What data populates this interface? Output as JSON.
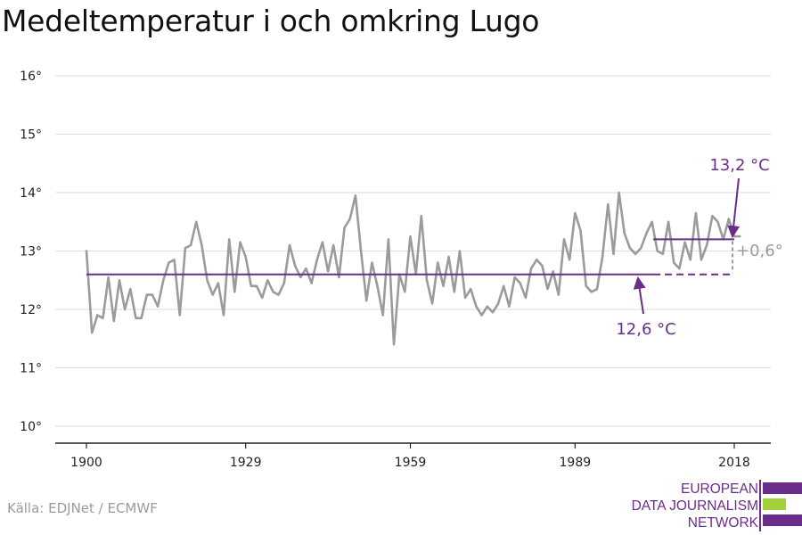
{
  "title": "Medeltemperatur i och omkring Lugo",
  "source": "Källa: EDJNet / ECMWF",
  "logo": {
    "lines": [
      "EUROPEAN",
      "DATA JOURNALISM",
      "NETWORK"
    ],
    "colors": {
      "purple": "#6b2d8a",
      "green": "#a3d13a"
    }
  },
  "chart_data": {
    "type": "line",
    "x_tick_labels": [
      "1900",
      "1929",
      "1959",
      "1989",
      "2018"
    ],
    "x_ticks": [
      1900,
      1929,
      1959,
      1989,
      2018
    ],
    "y_tick_labels": [
      "10°",
      "11°",
      "12°",
      "13°",
      "14°",
      "15°",
      "16°"
    ],
    "y_ticks": [
      10,
      11,
      12,
      13,
      14,
      15,
      16
    ],
    "xlim": [
      1895,
      2022
    ],
    "ylim": [
      9.7,
      16.2
    ],
    "grid": true,
    "series": [
      {
        "color": "#9b9b9b",
        "x": [
          1900,
          1901,
          1902,
          1903,
          1904,
          1905,
          1906,
          1907,
          1908,
          1909,
          1910,
          1911,
          1912,
          1913,
          1914,
          1915,
          1916,
          1917,
          1918,
          1919,
          1920,
          1921,
          1922,
          1923,
          1924,
          1925,
          1926,
          1927,
          1928,
          1929,
          1930,
          1931,
          1932,
          1933,
          1934,
          1935,
          1936,
          1937,
          1938,
          1939,
          1940,
          1941,
          1942,
          1943,
          1944,
          1945,
          1946,
          1947,
          1948,
          1949,
          1950,
          1951,
          1952,
          1953,
          1954,
          1955,
          1956,
          1957,
          1958,
          1959,
          1960,
          1961,
          1962,
          1963,
          1964,
          1965,
          1966,
          1967,
          1968,
          1969,
          1970,
          1971,
          1972,
          1973,
          1974,
          1975,
          1976,
          1977,
          1978,
          1979,
          1980,
          1981,
          1982,
          1983,
          1984,
          1985,
          1986,
          1987,
          1988,
          1989,
          1990,
          1991,
          1992,
          1993,
          1994,
          1995,
          1996,
          1997,
          1998,
          1999,
          2000,
          2001,
          2002,
          2003,
          2004,
          2005,
          2006,
          2007,
          2008,
          2009,
          2010,
          2011,
          2012,
          2013,
          2014,
          2015,
          2016,
          2017,
          2018,
          2019
        ],
        "y": [
          13.0,
          11.6,
          11.9,
          11.85,
          12.55,
          11.8,
          12.5,
          12.0,
          12.35,
          11.85,
          11.85,
          12.25,
          12.25,
          12.05,
          12.5,
          12.8,
          12.85,
          11.9,
          13.05,
          13.1,
          13.5,
          13.1,
          12.5,
          12.25,
          12.45,
          11.9,
          13.2,
          12.3,
          13.15,
          12.9,
          12.4,
          12.4,
          12.2,
          12.5,
          12.3,
          12.25,
          12.45,
          13.1,
          12.75,
          12.55,
          12.7,
          12.45,
          12.85,
          13.15,
          12.65,
          13.1,
          12.55,
          13.4,
          13.55,
          13.95,
          13.0,
          12.15,
          12.8,
          12.4,
          11.9,
          13.2,
          11.4,
          12.6,
          12.3,
          13.25,
          12.6,
          13.6,
          12.5,
          12.1,
          12.8,
          12.4,
          12.9,
          12.3,
          13.0,
          12.2,
          12.35,
          12.05,
          11.9,
          12.05,
          11.95,
          12.1,
          12.4,
          12.05,
          12.55,
          12.45,
          12.2,
          12.7,
          12.85,
          12.75,
          12.35,
          12.65,
          12.25,
          13.2,
          12.85,
          13.65,
          13.35,
          12.4,
          12.3,
          12.35,
          12.9,
          13.8,
          12.95,
          14.0,
          13.3,
          13.05,
          12.95,
          13.05,
          13.3,
          13.5,
          13.0,
          12.95,
          13.5,
          12.8,
          12.7,
          13.15,
          12.85,
          13.65,
          12.85,
          13.1,
          13.6,
          13.5,
          13.2,
          13.55,
          13.25,
          13.25
        ]
      }
    ],
    "reference_lines": [
      {
        "label": "12,6 °C",
        "value": 12.6,
        "x_from": 1900,
        "x_to": 2000,
        "dashed_to": 2018,
        "color": "#6b2d8a"
      },
      {
        "label": "13,2 °C",
        "value": 13.2,
        "x_from": 2000,
        "x_to": 2018,
        "color": "#6b2d8a"
      }
    ],
    "difference": {
      "label": "+0,6°",
      "color": "#9b9b9b"
    }
  }
}
